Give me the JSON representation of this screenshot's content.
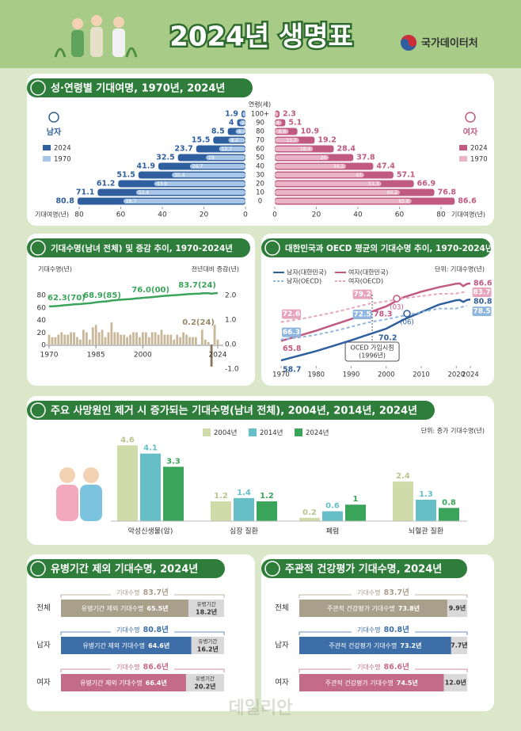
{
  "header": {
    "title": "2024년 생명표",
    "agency": "국가데이터처"
  },
  "watermark": "데일리안",
  "chart_data": [
    {
      "type": "pyramid",
      "title": "성·연령별 기대여명, 1970년, 2024년",
      "category_label": "연령(세)",
      "value_label": "기대여명(년)",
      "categories": [
        "100+",
        "90",
        "80",
        "70",
        "60",
        "50",
        "40",
        "30",
        "20",
        "10",
        "0"
      ],
      "xlim": [
        0,
        80
      ],
      "xticks": [
        0,
        20,
        40,
        60,
        80
      ],
      "groups": [
        {
          "name": "남자",
          "series": [
            {
              "name": "2024",
              "color": "#2f5f9e",
              "values": [
                1.9,
                4.0,
                8.5,
                15.5,
                23.7,
                32.5,
                41.9,
                51.5,
                61.2,
                71.1,
                80.8
              ]
            },
            {
              "name": "1970",
              "color": "#a9c6e6",
              "values": [
                1.5,
                2.9,
                4.7,
                8.2,
                12.7,
                19.0,
                26.7,
                35.4,
                43.9,
                52.6,
                58.7
              ]
            }
          ]
        },
        {
          "name": "여자",
          "series": [
            {
              "name": "2024",
              "color": "#c05a80",
              "values": [
                2.3,
                5.1,
                10.9,
                19.2,
                28.4,
                37.8,
                47.4,
                57.1,
                66.9,
                76.8,
                86.6
              ]
            },
            {
              "name": "1970",
              "color": "#e8b4c6",
              "values": [
                1.7,
                3.4,
                6.6,
                11.7,
                18.4,
                26.0,
                34.3,
                43.0,
                51.3,
                60.2,
                65.8
              ]
            }
          ]
        }
      ]
    },
    {
      "type": "line-bar",
      "title": "기대수명(남녀 전체) 및 증감 추이, 1970-2024년",
      "ylabel": "기대수명(년)",
      "y2label": "전년대비 증감(년)",
      "x": [
        1970,
        1971,
        1972,
        1973,
        1974,
        1975,
        1976,
        1977,
        1978,
        1979,
        1980,
        1981,
        1982,
        1983,
        1984,
        1985,
        1986,
        1987,
        1988,
        1989,
        1990,
        1991,
        1992,
        1993,
        1994,
        1995,
        1996,
        1997,
        1998,
        1999,
        2000,
        2001,
        2002,
        2003,
        2004,
        2005,
        2006,
        2007,
        2008,
        2009,
        2010,
        2011,
        2012,
        2013,
        2014,
        2015,
        2016,
        2017,
        2018,
        2019,
        2020,
        2021,
        2022,
        2023,
        2024
      ],
      "xlim": [
        1970,
        2024
      ],
      "xticks": [
        1970,
        1985,
        2000,
        2024
      ],
      "ylim": [
        0,
        80
      ],
      "yticks": [
        0,
        20,
        40,
        60,
        80
      ],
      "y2lim": [
        -1,
        2
      ],
      "y2ticks": [
        {
          "value": -1,
          "label": "-1.0"
        },
        {
          "value": 0,
          "label": "0.0"
        },
        {
          "value": 1,
          "label": "1.0"
        },
        {
          "value": 2,
          "label": "2.0"
        }
      ],
      "series": [
        {
          "type": "line",
          "color": "#3aa55a",
          "values": [
            62.3,
            62.6,
            62.9,
            63.3,
            63.8,
            64.2,
            64.6,
            65.1,
            65.6,
            65.9,
            66.1,
            66.7,
            67.2,
            67.4,
            68.1,
            68.9,
            69.4,
            70.0,
            70.3,
            70.8,
            71.7,
            72.2,
            72.7,
            73.1,
            73.5,
            73.8,
            74.2,
            74.7,
            75.2,
            75.5,
            76.0,
            76.5,
            76.8,
            77.3,
            77.8,
            78.2,
            78.8,
            79.2,
            79.6,
            80.0,
            80.2,
            80.6,
            80.9,
            81.4,
            81.8,
            82.1,
            82.4,
            82.7,
            82.7,
            83.3,
            83.5,
            83.6,
            82.7,
            83.5,
            83.7
          ]
        },
        {
          "type": "bar",
          "axis": "y2",
          "color": "#c9b79a",
          "values": [
            0.4,
            0.3,
            0.3,
            0.4,
            0.5,
            0.4,
            0.4,
            0.5,
            0.5,
            0.3,
            0.2,
            0.6,
            0.5,
            0.2,
            0.7,
            0.8,
            0.5,
            0.6,
            0.3,
            0.5,
            0.9,
            0.5,
            0.5,
            0.4,
            0.4,
            0.3,
            0.4,
            0.5,
            0.5,
            0.3,
            0.5,
            0.5,
            0.3,
            0.5,
            0.5,
            0.4,
            0.6,
            0.4,
            0.4,
            0.4,
            0.2,
            0.4,
            0.3,
            0.5,
            0.4,
            0.3,
            0.3,
            0.3,
            0,
            0.6,
            0.2,
            0.1,
            -0.9,
            0.8,
            0.2
          ]
        }
      ],
      "annotations": [
        "62.3(70)",
        "68.9(85)",
        "76.0(00)",
        "83.7(24)",
        "0.2(24)"
      ]
    },
    {
      "type": "line",
      "title": "대한민국과 OECD 평균의 기대수명 추이, 1970-2024년",
      "unit": "단위: 기대수명(년)",
      "x": [
        1970,
        1975,
        1980,
        1985,
        1990,
        1995,
        2000,
        2005,
        2010,
        2015,
        2020,
        2021,
        2022,
        2023,
        2024
      ],
      "xlim": [
        1970,
        2024
      ],
      "xticks": [
        1970,
        1980,
        1990,
        2000,
        2010,
        2020,
        2024
      ],
      "ylim": [
        55,
        90
      ],
      "series": [
        {
          "name": "남자(대한민국)",
          "color": "#2f5f9e",
          "dashed": false,
          "values": [
            58.7,
            60.4,
            62.1,
            64.0,
            66.0,
            68.1,
            70.2,
            73.5,
            76.2,
            78.9,
            80.5,
            80.6,
            79.9,
            80.6,
            80.8
          ]
        },
        {
          "name": "여자(대한민국)",
          "color": "#c05a80",
          "dashed": false,
          "values": [
            65.8,
            67.6,
            69.5,
            71.6,
            73.7,
            76.0,
            78.3,
            81.6,
            83.6,
            85.2,
            86.5,
            86.6,
            85.6,
            86.4,
            86.6
          ]
        },
        {
          "name": "남자(OECD)",
          "color": "#8fb6df",
          "dashed": true,
          "values": [
            66.3,
            67.0,
            68.0,
            69.3,
            70.9,
            72.5,
            73.6,
            74.9,
            76.2,
            77.5,
            77.5,
            77.9,
            78.2,
            78.5,
            null
          ]
        },
        {
          "name": "여자(OECD)",
          "color": "#e7a5bd",
          "dashed": true,
          "values": [
            72.6,
            73.6,
            74.8,
            76.1,
            77.6,
            79.2,
            80.1,
            81.2,
            82.0,
            82.8,
            82.9,
            83.2,
            83.4,
            83.7,
            null
          ]
        }
      ],
      "annotations": [
        "(03)",
        "(06)"
      ],
      "note": [
        "OCED 가입시점",
        "(1996년)"
      ]
    },
    {
      "type": "bar",
      "title": "주요 사망원인 제거 시 증가되는 기대수명(남녀 전체), 2004년, 2014년, 2024년",
      "unit": "단위: 증가 기대수명(년)",
      "categories": [
        "악성신생물(암)",
        "심장 질환",
        "폐렴",
        "뇌혈관 질환"
      ],
      "ylim": [
        0,
        5
      ],
      "series": [
        {
          "name": "2004년",
          "color": "#cfdcaa",
          "values": [
            4.6,
            1.2,
            0.2,
            2.4
          ]
        },
        {
          "name": "2014년",
          "color": "#66bfc7",
          "values": [
            4.1,
            1.4,
            0.6,
            1.3
          ]
        },
        {
          "name": "2024년",
          "color": "#3aa55a",
          "values": [
            3.3,
            1.2,
            1.0,
            0.8
          ]
        }
      ]
    },
    {
      "type": "stacked-bar-h",
      "title": "유병기간 제외 기대수명, 2024년",
      "categories": [
        "전체",
        "남자",
        "여자"
      ],
      "colors": [
        "#a99f8b",
        "#3d6ea8",
        "#c46b8a"
      ],
      "total": {
        "name": "기대수명",
        "values": [
          83.7,
          80.8,
          86.6
        ],
        "value_labels": [
          "83.7년",
          "80.8년",
          "86.6년"
        ]
      },
      "series": [
        {
          "name": "유병기간 제외 기대수명",
          "values": [
            65.5,
            64.6,
            66.4
          ],
          "value_labels": [
            "65.5년",
            "64.6년",
            "66.4년"
          ]
        },
        {
          "name": "유병기간",
          "color": "#d9d9d9",
          "values": [
            18.2,
            16.2,
            20.2
          ],
          "value_labels": [
            "18.2년",
            "16.2년",
            "20.2년"
          ]
        }
      ]
    },
    {
      "type": "stacked-bar-h",
      "title": "주관적 건강평가 기대수명, 2024년",
      "categories": [
        "전체",
        "남자",
        "여자"
      ],
      "colors": [
        "#a99f8b",
        "#3d6ea8",
        "#c46b8a"
      ],
      "total": {
        "name": "기대수명",
        "values": [
          83.7,
          80.8,
          86.6
        ],
        "value_labels": [
          "83.7년",
          "80.8년",
          "86.6년"
        ]
      },
      "series": [
        {
          "name": "주관적 건강평가 기대수명",
          "values": [
            73.8,
            73.2,
            74.5
          ],
          "value_labels": [
            "73.8년",
            "73.2년",
            "74.5년"
          ]
        },
        {
          "color": "#d9d9d9",
          "values": [
            9.9,
            7.7,
            12.0
          ],
          "value_labels": [
            "9.9년",
            "7.7년",
            "12.0년"
          ]
        }
      ]
    }
  ]
}
